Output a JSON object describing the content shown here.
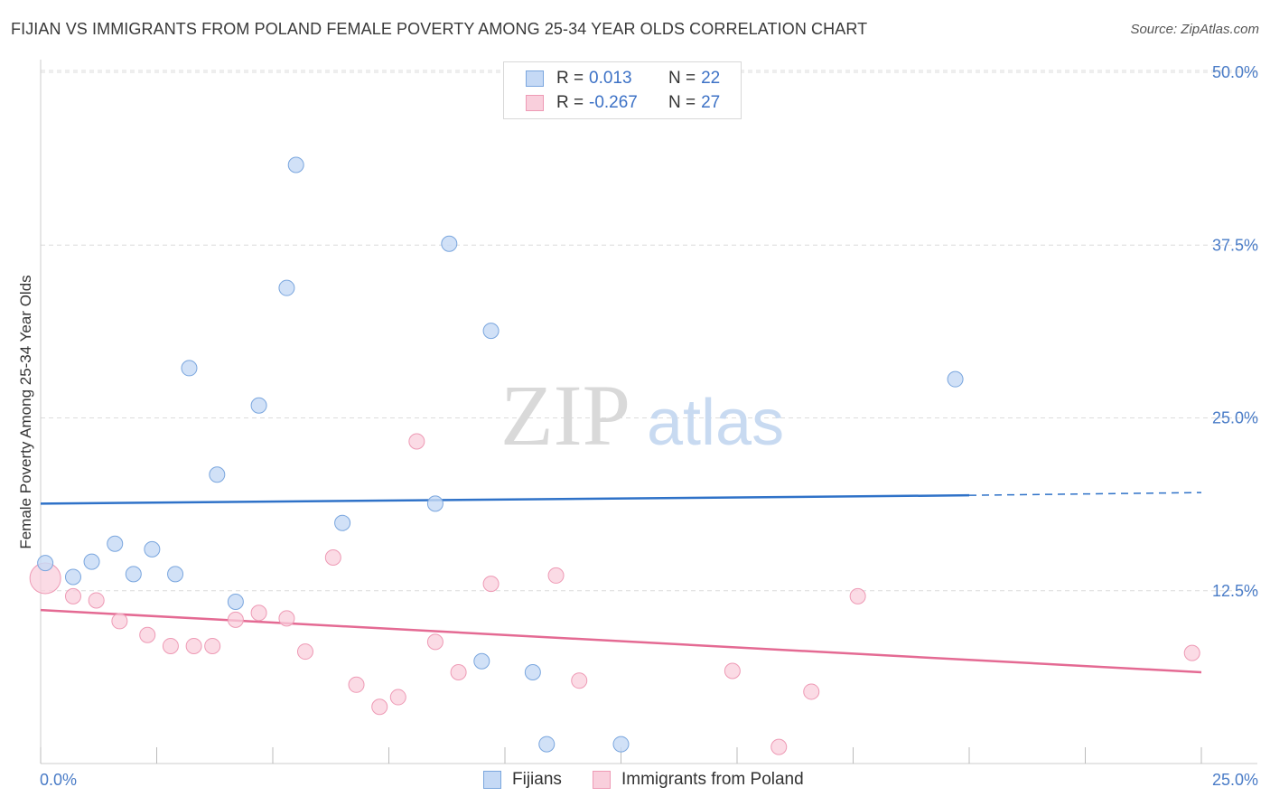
{
  "title": "FIJIAN VS IMMIGRANTS FROM POLAND FEMALE POVERTY AMONG 25-34 YEAR OLDS CORRELATION CHART",
  "source": "Source: ZipAtlas.com",
  "watermark": {
    "zip": "ZIP",
    "atlas": "atlas"
  },
  "legend": {
    "rows": [
      {
        "r_label": "R =",
        "r_value": "0.013",
        "n_label": "N =",
        "n_value": "22"
      },
      {
        "r_label": "R =",
        "r_value": "-0.267",
        "n_label": "N =",
        "n_value": "27"
      }
    ]
  },
  "colors": {
    "fijians_fill": "#c5d9f5",
    "fijians_stroke": "#7aa6de",
    "fijians_line": "#2f72c8",
    "poland_fill": "#f9cfdc",
    "poland_stroke": "#ee9ab5",
    "poland_line": "#e46a93",
    "grid": "#dcdcdc",
    "tick_text": "#4a7cc7"
  },
  "chart_data": {
    "type": "scatter",
    "title": "FIJIAN VS IMMIGRANTS FROM POLAND FEMALE POVERTY AMONG 25-34 YEAR OLDS CORRELATION CHART",
    "xlabel": "",
    "ylabel": "Female Poverty Among 25-34 Year Olds",
    "xlim": [
      0,
      25
    ],
    "ylim": [
      0,
      50
    ],
    "x_tick_labels": [
      "0.0%",
      "25.0%"
    ],
    "y_ticks": [
      12.5,
      25.0,
      37.5,
      50.0
    ],
    "y_tick_labels": [
      "12.5%",
      "25.0%",
      "37.5%",
      "50.0%"
    ],
    "grid": true,
    "series": [
      {
        "name": "Fijians",
        "r": 0.013,
        "n": 22,
        "points": [
          [
            0.1,
            14.5
          ],
          [
            0.7,
            13.5
          ],
          [
            1.1,
            14.6
          ],
          [
            1.6,
            15.9
          ],
          [
            2.0,
            13.7
          ],
          [
            2.4,
            15.5
          ],
          [
            2.9,
            13.7
          ],
          [
            3.2,
            28.6
          ],
          [
            3.8,
            20.9
          ],
          [
            4.2,
            11.7
          ],
          [
            4.7,
            25.9
          ],
          [
            5.3,
            34.4
          ],
          [
            5.5,
            43.3
          ],
          [
            6.5,
            17.4
          ],
          [
            8.5,
            18.8
          ],
          [
            8.8,
            37.6
          ],
          [
            9.5,
            7.4
          ],
          [
            9.7,
            31.3
          ],
          [
            10.6,
            6.6
          ],
          [
            10.9,
            1.4
          ],
          [
            12.5,
            1.4
          ],
          [
            19.7,
            27.8
          ]
        ],
        "trend": {
          "x0": 0,
          "y0": 18.8,
          "x1": 20,
          "y1": 19.4,
          "dash_x1": 25,
          "dash_y1": 19.6
        }
      },
      {
        "name": "Immigrants from Poland",
        "r": -0.267,
        "n": 27,
        "points": [
          [
            0.1,
            13.4
          ],
          [
            0.7,
            12.1
          ],
          [
            1.2,
            11.8
          ],
          [
            1.7,
            10.3
          ],
          [
            2.3,
            9.3
          ],
          [
            2.8,
            8.5
          ],
          [
            3.3,
            8.5
          ],
          [
            3.7,
            8.5
          ],
          [
            4.2,
            10.4
          ],
          [
            4.7,
            10.9
          ],
          [
            5.3,
            10.5
          ],
          [
            5.7,
            8.1
          ],
          [
            6.3,
            14.9
          ],
          [
            6.8,
            5.7
          ],
          [
            7.3,
            4.1
          ],
          [
            7.7,
            4.8
          ],
          [
            8.1,
            23.3
          ],
          [
            8.5,
            8.8
          ],
          [
            9.0,
            6.6
          ],
          [
            9.7,
            13.0
          ],
          [
            11.1,
            13.6
          ],
          [
            11.6,
            6.0
          ],
          [
            14.9,
            6.7
          ],
          [
            15.9,
            1.2
          ],
          [
            16.6,
            5.2
          ],
          [
            17.6,
            12.1
          ],
          [
            24.8,
            8.0
          ]
        ],
        "trend": {
          "x0": 0,
          "y0": 11.1,
          "x1": 25,
          "y1": 6.6
        }
      }
    ]
  }
}
